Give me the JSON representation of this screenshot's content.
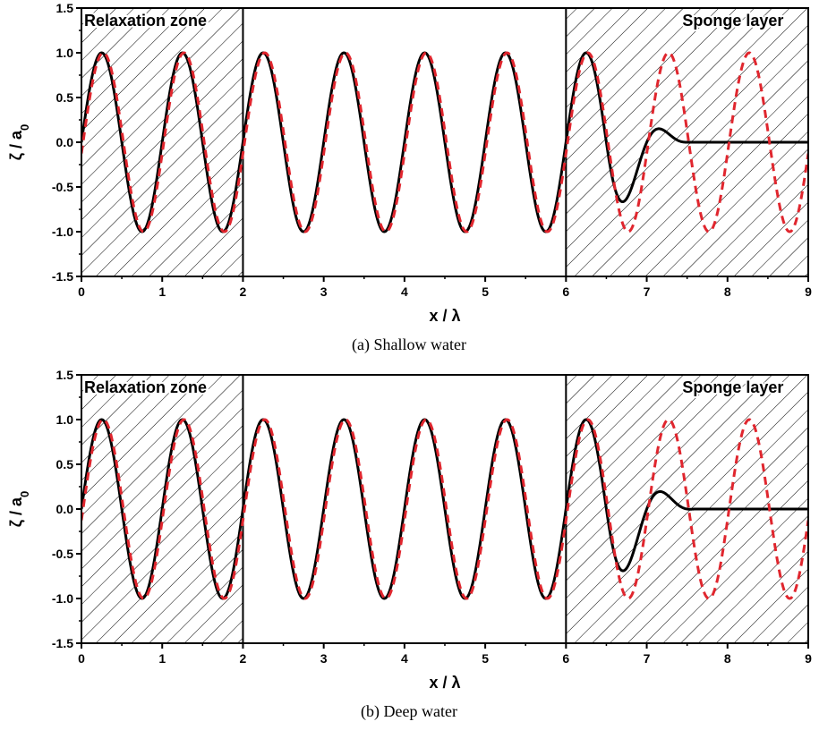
{
  "chart_data": [
    {
      "type": "line",
      "caption": "(a) Shallow water",
      "xlabel": "x / λ",
      "ylabel_main": "ζ / a",
      "ylabel_sub": "0",
      "xlim": [
        0,
        9
      ],
      "ylim": [
        -1.5,
        1.5
      ],
      "xticks": [
        "0",
        "1",
        "2",
        "3",
        "4",
        "5",
        "6",
        "7",
        "8",
        "9"
      ],
      "yticks": [
        "-1.5",
        "-1.0",
        "-0.5",
        "0.0",
        "0.5",
        "1.0",
        "1.5"
      ],
      "grid": false,
      "zones": [
        {
          "label": "Relaxation zone",
          "x_start": 0,
          "x_end": 2,
          "y_start": -1.5,
          "y_end": 1.5
        },
        {
          "label": "Sponge layer",
          "x_start": 6,
          "x_end": 9,
          "y_start": -1.5,
          "y_end": 1.5
        }
      ],
      "series": [
        {
          "style": "solid",
          "color": "#000000",
          "amplitude": 1.0,
          "phase_shift": 0.0,
          "damping_start": 6.5,
          "damping_end": 7.5
        },
        {
          "style": "dashed",
          "color": "#e0262e",
          "amplitude": 1.0,
          "phase_shift": 0.02
        }
      ]
    },
    {
      "type": "line",
      "caption": "(b) Deep water",
      "xlabel": "x / λ",
      "ylabel_main": "ζ / a",
      "ylabel_sub": "0",
      "xlim": [
        0,
        9
      ],
      "ylim": [
        -1.5,
        1.5
      ],
      "xticks": [
        "0",
        "1",
        "2",
        "3",
        "4",
        "5",
        "6",
        "7",
        "8",
        "9"
      ],
      "yticks": [
        "-1.5",
        "-1.0",
        "-0.5",
        "0.0",
        "0.5",
        "1.0",
        "1.5"
      ],
      "grid": false,
      "zones": [
        {
          "label": "Relaxation zone",
          "x_start": 0,
          "x_end": 2,
          "y_start": -1.5,
          "y_end": 1.5
        },
        {
          "label": "Sponge layer",
          "x_start": 6,
          "x_end": 9,
          "y_start": -1.5,
          "y_end": 1.5
        }
      ],
      "series": [
        {
          "style": "solid",
          "color": "#000000",
          "amplitude": 1.0,
          "phase_shift": 0.0,
          "damping_start": 6.5,
          "damping_end": 7.6
        },
        {
          "style": "dashed",
          "color": "#e0262e",
          "amplitude": 1.0,
          "phase_shift": 0.02
        }
      ]
    }
  ]
}
